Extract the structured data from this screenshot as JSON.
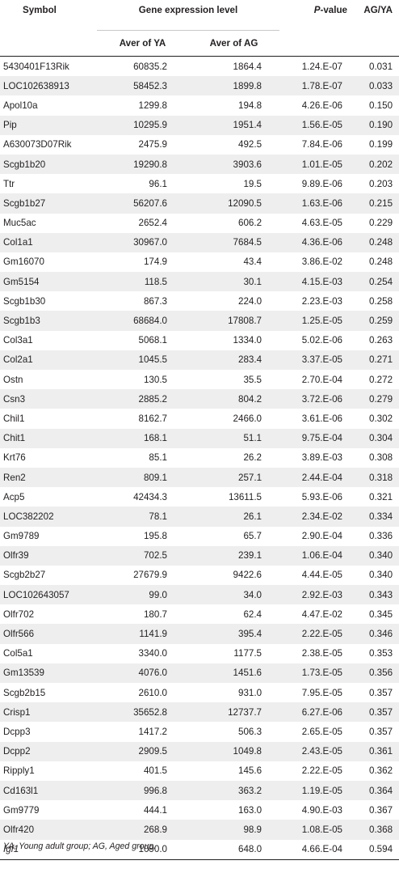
{
  "headers": {
    "symbol": "Symbol",
    "group": "Gene expression level",
    "ya": "Aver of YA",
    "ag": "Aver of AG",
    "pvalue_italic": "P",
    "pvalue_rest": "-value",
    "ratio": "AG/YA"
  },
  "rows": [
    {
      "symbol": "5430401F13Rik",
      "ya": "60835.2",
      "ag": "1864.4",
      "p": "1.24.E-07",
      "ratio": "0.031"
    },
    {
      "symbol": "LOC102638913",
      "ya": "58452.3",
      "ag": "1899.8",
      "p": "1.78.E-07",
      "ratio": "0.033"
    },
    {
      "symbol": "Apol10a",
      "ya": "1299.8",
      "ag": "194.8",
      "p": "4.26.E-06",
      "ratio": "0.150"
    },
    {
      "symbol": "Pip",
      "ya": "10295.9",
      "ag": "1951.4",
      "p": "1.56.E-05",
      "ratio": "0.190"
    },
    {
      "symbol": "A630073D07Rik",
      "ya": "2475.9",
      "ag": "492.5",
      "p": "7.84.E-06",
      "ratio": "0.199"
    },
    {
      "symbol": "Scgb1b20",
      "ya": "19290.8",
      "ag": "3903.6",
      "p": "1.01.E-05",
      "ratio": "0.202"
    },
    {
      "symbol": "Ttr",
      "ya": "96.1",
      "ag": "19.5",
      "p": "9.89.E-06",
      "ratio": "0.203"
    },
    {
      "symbol": "Scgb1b27",
      "ya": "56207.6",
      "ag": "12090.5",
      "p": "1.63.E-06",
      "ratio": "0.215"
    },
    {
      "symbol": "Muc5ac",
      "ya": "2652.4",
      "ag": "606.2",
      "p": "4.63.E-05",
      "ratio": "0.229"
    },
    {
      "symbol": "Col1a1",
      "ya": "30967.0",
      "ag": "7684.5",
      "p": "4.36.E-06",
      "ratio": "0.248"
    },
    {
      "symbol": "Gm16070",
      "ya": "174.9",
      "ag": "43.4",
      "p": "3.86.E-02",
      "ratio": "0.248"
    },
    {
      "symbol": "Gm5154",
      "ya": "118.5",
      "ag": "30.1",
      "p": "4.15.E-03",
      "ratio": "0.254"
    },
    {
      "symbol": "Scgb1b30",
      "ya": "867.3",
      "ag": "224.0",
      "p": "2.23.E-03",
      "ratio": "0.258"
    },
    {
      "symbol": "Scgb1b3",
      "ya": "68684.0",
      "ag": "17808.7",
      "p": "1.25.E-05",
      "ratio": "0.259"
    },
    {
      "symbol": "Col3a1",
      "ya": "5068.1",
      "ag": "1334.0",
      "p": "5.02.E-06",
      "ratio": "0.263"
    },
    {
      "symbol": "Col2a1",
      "ya": "1045.5",
      "ag": "283.4",
      "p": "3.37.E-05",
      "ratio": "0.271"
    },
    {
      "symbol": "Ostn",
      "ya": "130.5",
      "ag": "35.5",
      "p": "2.70.E-04",
      "ratio": "0.272"
    },
    {
      "symbol": "Csn3",
      "ya": "2885.2",
      "ag": "804.2",
      "p": "3.72.E-06",
      "ratio": "0.279"
    },
    {
      "symbol": "Chil1",
      "ya": "8162.7",
      "ag": "2466.0",
      "p": "3.61.E-06",
      "ratio": "0.302"
    },
    {
      "symbol": "Chit1",
      "ya": "168.1",
      "ag": "51.1",
      "p": "9.75.E-04",
      "ratio": "0.304"
    },
    {
      "symbol": "Krt76",
      "ya": "85.1",
      "ag": "26.2",
      "p": "3.89.E-03",
      "ratio": "0.308"
    },
    {
      "symbol": "Ren2",
      "ya": "809.1",
      "ag": "257.1",
      "p": "2.44.E-04",
      "ratio": "0.318"
    },
    {
      "symbol": "Acp5",
      "ya": "42434.3",
      "ag": "13611.5",
      "p": "5.93.E-06",
      "ratio": "0.321"
    },
    {
      "symbol": "LOC382202",
      "ya": "78.1",
      "ag": "26.1",
      "p": "2.34.E-02",
      "ratio": "0.334"
    },
    {
      "symbol": "Gm9789",
      "ya": "195.8",
      "ag": "65.7",
      "p": "2.90.E-04",
      "ratio": "0.336"
    },
    {
      "symbol": "Olfr39",
      "ya": "702.5",
      "ag": "239.1",
      "p": "1.06.E-04",
      "ratio": "0.340"
    },
    {
      "symbol": "Scgb2b27",
      "ya": "27679.9",
      "ag": "9422.6",
      "p": "4.44.E-05",
      "ratio": "0.340"
    },
    {
      "symbol": "LOC102643057",
      "ya": "99.0",
      "ag": "34.0",
      "p": "2.92.E-03",
      "ratio": "0.343"
    },
    {
      "symbol": "Olfr702",
      "ya": "180.7",
      "ag": "62.4",
      "p": "4.47.E-02",
      "ratio": "0.345"
    },
    {
      "symbol": "Olfr566",
      "ya": "1141.9",
      "ag": "395.4",
      "p": "2.22.E-05",
      "ratio": "0.346"
    },
    {
      "symbol": "Col5a1",
      "ya": "3340.0",
      "ag": "1177.5",
      "p": "2.38.E-05",
      "ratio": "0.353"
    },
    {
      "symbol": "Gm13539",
      "ya": "4076.0",
      "ag": "1451.6",
      "p": "1.73.E-05",
      "ratio": "0.356"
    },
    {
      "symbol": "Scgb2b15",
      "ya": "2610.0",
      "ag": "931.0",
      "p": "7.95.E-05",
      "ratio": "0.357"
    },
    {
      "symbol": "Crisp1",
      "ya": "35652.8",
      "ag": "12737.7",
      "p": "6.27.E-06",
      "ratio": "0.357"
    },
    {
      "symbol": "Dcpp3",
      "ya": "1417.2",
      "ag": "506.3",
      "p": "2.65.E-05",
      "ratio": "0.357"
    },
    {
      "symbol": "Dcpp2",
      "ya": "2909.5",
      "ag": "1049.8",
      "p": "2.43.E-05",
      "ratio": "0.361"
    },
    {
      "symbol": "Ripply1",
      "ya": "401.5",
      "ag": "145.6",
      "p": "2.22.E-05",
      "ratio": "0.362"
    },
    {
      "symbol": "Cd163l1",
      "ya": "996.8",
      "ag": "363.2",
      "p": "1.19.E-05",
      "ratio": "0.364"
    },
    {
      "symbol": "Gm9779",
      "ya": "444.1",
      "ag": "163.0",
      "p": "4.90.E-03",
      "ratio": "0.367"
    },
    {
      "symbol": "Olfr420",
      "ya": "268.9",
      "ag": "98.9",
      "p": "1.08.E-05",
      "ratio": "0.368"
    },
    {
      "symbol": "Igf1",
      "ya": "1090.0",
      "ag": "648.0",
      "p": "4.66.E-04",
      "ratio": "0.594",
      "italic": true
    }
  ],
  "footnote": "YA, Young adult group; AG, Aged group."
}
